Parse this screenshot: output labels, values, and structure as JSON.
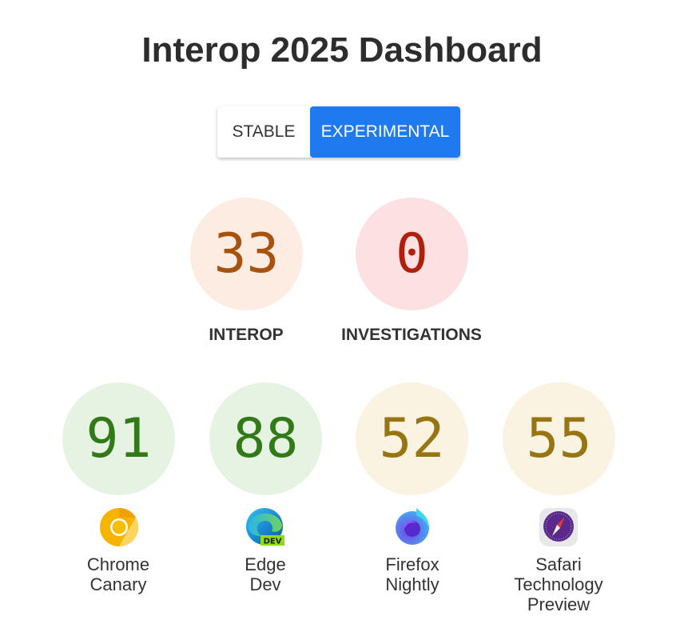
{
  "title": "Interop 2025 Dashboard",
  "toggle": {
    "stable_label": "STABLE",
    "experimental_label": "EXPERIMENTAL",
    "selected": "EXPERIMENTAL",
    "accent": "#1f7af0"
  },
  "summary": [
    {
      "label": "INTEROP",
      "score": "33",
      "color": "#a8520f",
      "bg": "#fdece2"
    },
    {
      "label": "INVESTIGATIONS",
      "score": "0",
      "color": "#b01e0c",
      "bg": "#fde0e2"
    }
  ],
  "browsers": [
    {
      "name_line1": "Chrome",
      "name_line2": "Canary",
      "name_line3": "",
      "score": "91",
      "icon": "chrome-canary-icon",
      "color": "#327a18",
      "bg": "#e6f3e3"
    },
    {
      "name_line1": "Edge",
      "name_line2": "Dev",
      "name_line3": "",
      "score": "88",
      "icon": "edge-dev-icon",
      "icon_badge": "DEV",
      "color": "#327a18",
      "bg": "#e6f3e3"
    },
    {
      "name_line1": "Firefox",
      "name_line2": "Nightly",
      "name_line3": "",
      "score": "52",
      "icon": "firefox-nightly-icon",
      "color": "#977510",
      "bg": "#faf3e2"
    },
    {
      "name_line1": "Safari",
      "name_line2": "Technology",
      "name_line3": "Preview",
      "score": "55",
      "icon": "safari-technology-preview-icon",
      "color": "#977510",
      "bg": "#faf3e2"
    }
  ]
}
